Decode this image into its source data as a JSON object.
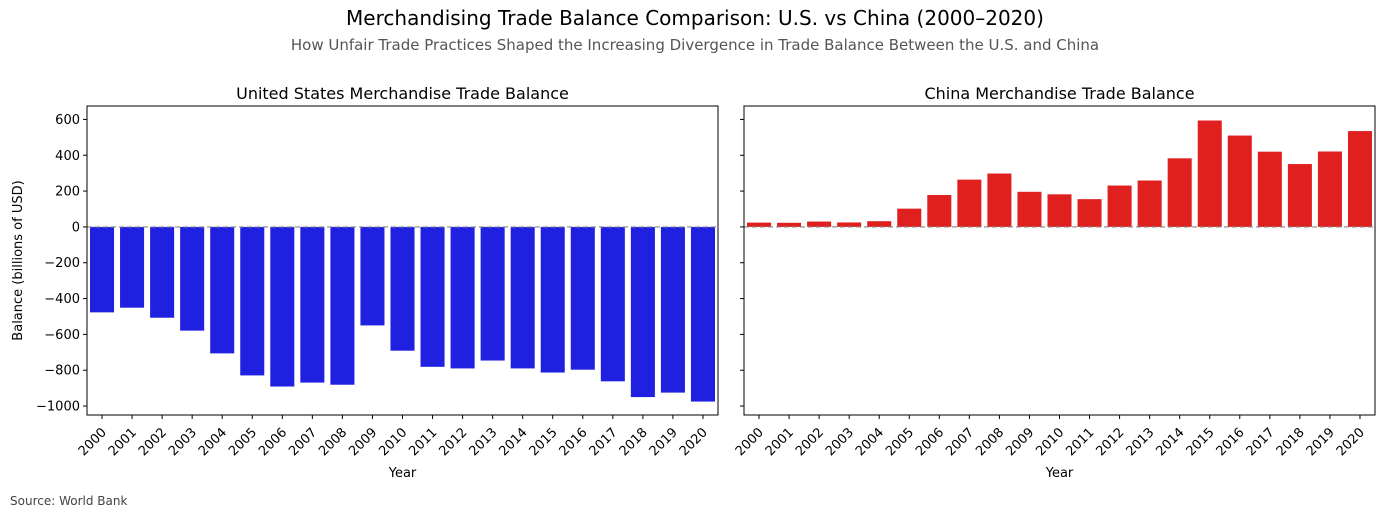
{
  "figure": {
    "title": "Merchandising Trade Balance Comparison: U.S. vs China (2000–2020)",
    "subtitle": "How Unfair Trade Practices Shaped the Increasing Divergence in Trade Balance Between the U.S. and China",
    "source": "Source: World Bank"
  },
  "chart_data": [
    {
      "type": "bar",
      "title": "United States Merchandise Trade Balance",
      "xlabel": "Year",
      "ylabel": "Balance (billions of USD)",
      "categories": [
        "2000",
        "2001",
        "2002",
        "2003",
        "2004",
        "2005",
        "2006",
        "2007",
        "2008",
        "2009",
        "2010",
        "2011",
        "2012",
        "2013",
        "2014",
        "2015",
        "2016",
        "2017",
        "2018",
        "2019",
        "2020"
      ],
      "values": [
        -477,
        -451,
        -507,
        -579,
        -706,
        -829,
        -891,
        -869,
        -881,
        -550,
        -691,
        -781,
        -790,
        -746,
        -790,
        -813,
        -797,
        -862,
        -950,
        -925,
        -975
      ],
      "ylim": [
        -1050,
        675
      ],
      "yticks": [
        -1000,
        -800,
        -600,
        -400,
        -200,
        0,
        200,
        400,
        600
      ],
      "color": "#2020e0",
      "zero_line": true,
      "grid": false
    },
    {
      "type": "bar",
      "title": "China Merchandise Trade Balance",
      "xlabel": "Year",
      "ylabel": "",
      "categories": [
        "2000",
        "2001",
        "2002",
        "2003",
        "2004",
        "2005",
        "2006",
        "2007",
        "2008",
        "2009",
        "2010",
        "2011",
        "2012",
        "2013",
        "2014",
        "2015",
        "2016",
        "2017",
        "2018",
        "2019",
        "2020"
      ],
      "values": [
        24,
        23,
        30,
        25,
        32,
        102,
        178,
        264,
        298,
        196,
        182,
        155,
        231,
        259,
        383,
        594,
        510,
        420,
        351,
        421,
        535
      ],
      "ylim": [
        -1050,
        675
      ],
      "yticks": [
        -1000,
        -800,
        -600,
        -400,
        -200,
        0,
        200,
        400,
        600
      ],
      "shared_y": true,
      "color": "#e01f1f",
      "zero_line": true,
      "grid": false
    }
  ]
}
